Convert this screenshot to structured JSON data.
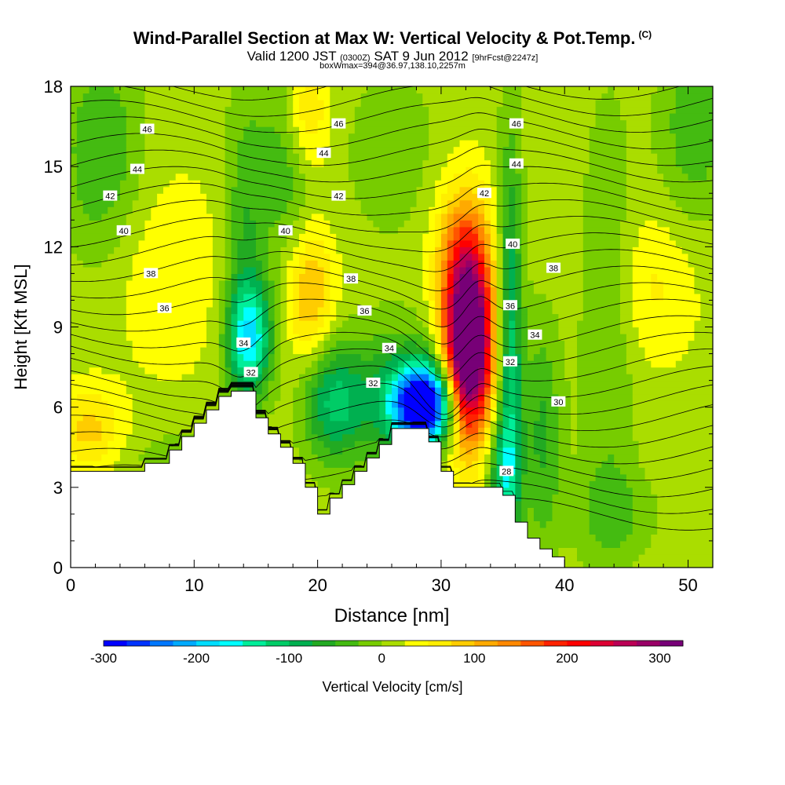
{
  "header": {
    "title": "Wind-Parallel Section at Max W: Vertical Velocity & Pot.Temp.",
    "copyright": "(C)",
    "valid_a": "Valid 1200 JST",
    "valid_utc": "(0300Z)",
    "valid_b": "SAT 9 Jun 2012",
    "forecast": "[9hrFcst@2247z]",
    "box_info": "boxWmax=394@36.97,138.10,2257m"
  },
  "chart_data": {
    "type": "heatmap",
    "xlabel": "Distance [nm]",
    "ylabel": "Height [Kft MSL]",
    "xlim": [
      0,
      52
    ],
    "ylim": [
      0,
      18
    ],
    "x_ticks": [
      0,
      10,
      20,
      30,
      40,
      50
    ],
    "y_ticks": [
      0,
      3,
      6,
      9,
      12,
      15,
      18
    ],
    "colorbar": {
      "label": "Vertical Velocity [cm/s]",
      "range": [
        -300,
        325
      ],
      "step": 25,
      "tick_values": [
        -300,
        -200,
        -100,
        0,
        100,
        200,
        300
      ],
      "tick_labels": [
        "-300",
        "-200",
        "-100",
        "0",
        "100",
        "200",
        "300"
      ],
      "colors": [
        "#0000ff",
        "#0033ff",
        "#0077ff",
        "#00aaff",
        "#00ddff",
        "#00ffff",
        "#00ee99",
        "#00cc66",
        "#00b050",
        "#22aa22",
        "#44bb11",
        "#77cc00",
        "#aadd00",
        "#ffff00",
        "#ffee00",
        "#ffcc00",
        "#ffaa00",
        "#ff8800",
        "#ff5500",
        "#ff2200",
        "#ff0000",
        "#dd0033",
        "#bb0055",
        "#990066",
        "#770077"
      ]
    },
    "terrain_profile": [
      [
        0,
        3.6
      ],
      [
        6,
        3.6
      ],
      [
        6,
        3.9
      ],
      [
        8,
        3.9
      ],
      [
        8,
        4.4
      ],
      [
        9,
        4.4
      ],
      [
        9,
        4.9
      ],
      [
        10,
        4.9
      ],
      [
        10,
        5.4
      ],
      [
        11,
        5.4
      ],
      [
        11,
        5.9
      ],
      [
        12,
        5.9
      ],
      [
        12,
        6.4
      ],
      [
        13,
        6.4
      ],
      [
        13,
        6.6
      ],
      [
        15,
        6.6
      ],
      [
        15,
        5.6
      ],
      [
        16,
        5.6
      ],
      [
        16,
        5.0
      ],
      [
        17,
        5.0
      ],
      [
        17,
        4.5
      ],
      [
        18,
        4.5
      ],
      [
        18,
        3.9
      ],
      [
        19,
        3.9
      ],
      [
        19,
        3.0
      ],
      [
        20,
        3.0
      ],
      [
        20,
        2.0
      ],
      [
        21,
        2.0
      ],
      [
        21,
        2.6
      ],
      [
        22,
        2.6
      ],
      [
        22,
        3.1
      ],
      [
        23,
        3.1
      ],
      [
        23,
        3.6
      ],
      [
        24,
        3.6
      ],
      [
        24,
        4.1
      ],
      [
        25,
        4.1
      ],
      [
        25,
        4.6
      ],
      [
        26,
        4.6
      ],
      [
        26,
        5.2
      ],
      [
        29,
        5.2
      ],
      [
        29,
        4.7
      ],
      [
        30,
        4.7
      ],
      [
        30,
        3.6
      ],
      [
        31,
        3.6
      ],
      [
        31,
        3.0
      ],
      [
        35,
        3.0
      ],
      [
        35,
        2.7
      ],
      [
        36,
        2.7
      ],
      [
        36,
        1.7
      ],
      [
        37,
        1.7
      ],
      [
        37,
        1.1
      ],
      [
        38,
        1.1
      ],
      [
        38,
        0.7
      ],
      [
        39,
        0.7
      ],
      [
        39,
        0.4
      ],
      [
        40,
        0.4
      ],
      [
        40,
        0
      ]
    ],
    "contours": {
      "field": "Pot.Temp.",
      "labels": [
        {
          "text": "46",
          "x": 6.2,
          "y": 16.4
        },
        {
          "text": "44",
          "x": 5.4,
          "y": 14.9
        },
        {
          "text": "42",
          "x": 3.2,
          "y": 13.9
        },
        {
          "text": "40",
          "x": 4.3,
          "y": 12.6
        },
        {
          "text": "38",
          "x": 6.5,
          "y": 11.0
        },
        {
          "text": "36",
          "x": 7.6,
          "y": 9.7
        },
        {
          "text": "34",
          "x": 14.0,
          "y": 8.4
        },
        {
          "text": "32",
          "x": 14.6,
          "y": 7.3
        },
        {
          "text": "46",
          "x": 21.7,
          "y": 16.6
        },
        {
          "text": "44",
          "x": 20.5,
          "y": 15.5
        },
        {
          "text": "42",
          "x": 21.7,
          "y": 13.9
        },
        {
          "text": "40",
          "x": 17.4,
          "y": 12.6
        },
        {
          "text": "38",
          "x": 22.7,
          "y": 10.8
        },
        {
          "text": "36",
          "x": 23.8,
          "y": 9.6
        },
        {
          "text": "34",
          "x": 25.8,
          "y": 8.2
        },
        {
          "text": "32",
          "x": 24.5,
          "y": 6.9
        },
        {
          "text": "46",
          "x": 36.1,
          "y": 16.6
        },
        {
          "text": "44",
          "x": 36.1,
          "y": 15.1
        },
        {
          "text": "42",
          "x": 33.5,
          "y": 14.0
        },
        {
          "text": "40",
          "x": 35.8,
          "y": 12.1
        },
        {
          "text": "38",
          "x": 39.1,
          "y": 11.2
        },
        {
          "text": "36",
          "x": 35.6,
          "y": 9.8
        },
        {
          "text": "34",
          "x": 37.6,
          "y": 8.7
        },
        {
          "text": "32",
          "x": 35.6,
          "y": 7.7
        },
        {
          "text": "30",
          "x": 39.5,
          "y": 6.2
        },
        {
          "text": "28",
          "x": 35.3,
          "y": 3.6
        }
      ]
    }
  }
}
